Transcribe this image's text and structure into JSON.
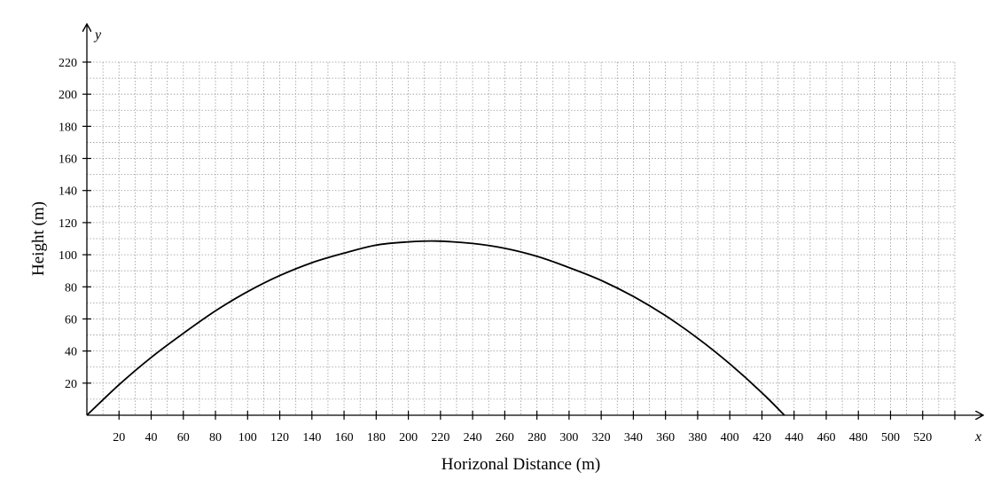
{
  "chart_data": {
    "type": "line",
    "xlabel": "Horizonal Distance (m)",
    "ylabel": "Height (m)",
    "x_axis_var": "x",
    "y_axis_var": "y",
    "xlim": [
      0,
      540
    ],
    "ylim": [
      0,
      220
    ],
    "x_ticks": [
      20,
      40,
      60,
      80,
      100,
      120,
      140,
      160,
      180,
      200,
      220,
      240,
      260,
      280,
      300,
      320,
      340,
      360,
      380,
      400,
      420,
      440,
      460,
      480,
      500,
      520
    ],
    "y_ticks": [
      20,
      40,
      60,
      80,
      100,
      120,
      140,
      160,
      180,
      200,
      220
    ],
    "grid": true,
    "series": [
      {
        "x": [
          0,
          20,
          40,
          60,
          80,
          100,
          120,
          140,
          160,
          180,
          200,
          217,
          240,
          260,
          280,
          300,
          320,
          340,
          360,
          380,
          400,
          420,
          434
        ],
        "y": [
          0,
          19,
          36,
          51,
          65,
          77,
          87,
          95,
          101,
          106,
          108,
          108.5,
          107,
          104,
          99,
          92,
          84,
          74,
          62,
          48,
          32,
          14,
          0
        ]
      }
    ]
  }
}
